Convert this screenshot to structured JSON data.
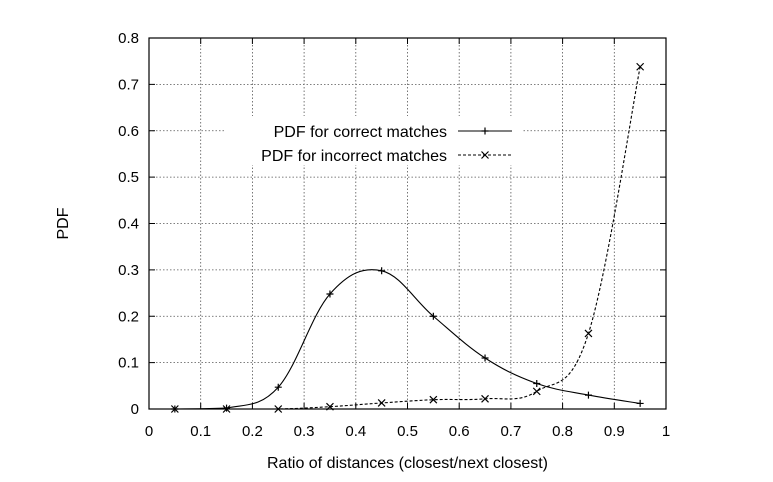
{
  "chart_data": {
    "type": "line",
    "xlabel": "Ratio of distances (closest/next closest)",
    "ylabel": "PDF",
    "xlim": [
      0,
      1
    ],
    "ylim": [
      0,
      0.8
    ],
    "x_ticks": [
      "0",
      "0.1",
      "0.2",
      "0.3",
      "0.4",
      "0.5",
      "0.6",
      "0.7",
      "0.8",
      "0.9",
      "1"
    ],
    "y_ticks": [
      "0",
      "0.1",
      "0.2",
      "0.3",
      "0.4",
      "0.5",
      "0.6",
      "0.7",
      "0.8"
    ],
    "grid": true,
    "legend_position": "upper-center",
    "series": [
      {
        "name": "PDF for correct matches",
        "line_style": "solid",
        "marker": "plus",
        "x": [
          0.05,
          0.15,
          0.25,
          0.35,
          0.45,
          0.55,
          0.65,
          0.75,
          0.85,
          0.95
        ],
        "y": [
          0.0,
          0.002,
          0.047,
          0.248,
          0.298,
          0.2,
          0.11,
          0.055,
          0.03,
          0.012
        ]
      },
      {
        "name": "PDF for incorrect matches",
        "line_style": "dashed",
        "marker": "x",
        "x": [
          0.05,
          0.15,
          0.25,
          0.35,
          0.45,
          0.55,
          0.65,
          0.75,
          0.85,
          0.95
        ],
        "y": [
          0.0,
          0.0,
          0.0,
          0.005,
          0.013,
          0.02,
          0.022,
          0.038,
          0.163,
          0.738
        ]
      }
    ]
  }
}
